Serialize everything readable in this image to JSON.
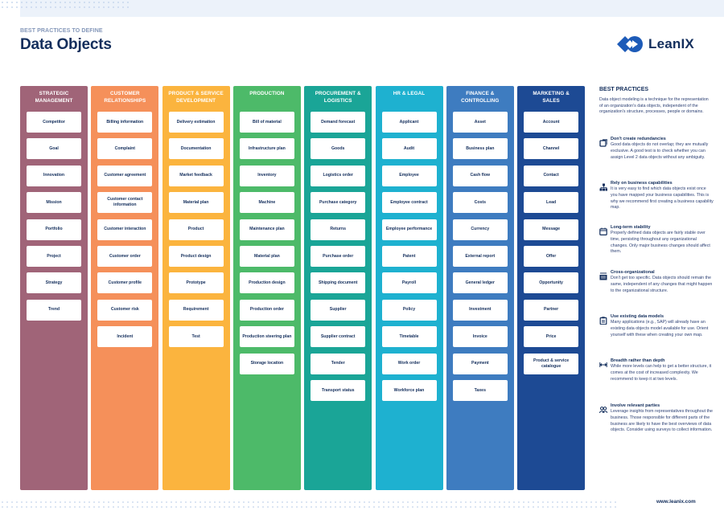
{
  "header": {
    "eyebrow": "BEST PRACTICES TO DEFINE",
    "title": "Data Objects",
    "logo_text": "LeanIX"
  },
  "colors": {
    "navy": "#132e5c",
    "strategic": "#a06478",
    "customer": "#f5905a",
    "product": "#fbb43e",
    "production": "#4dba69",
    "procurement": "#1aa597",
    "hr": "#1eb1d0",
    "finance": "#3e7cc0",
    "marketing": "#1d4a94"
  },
  "columns": [
    {
      "title_lines": [
        "STRATEGIC",
        "MANAGEMENT"
      ],
      "color": "#a06478",
      "items": [
        "Competitor",
        "Goal",
        "Innovation",
        "Mission",
        "Portfolio",
        "Project",
        "Strategy",
        "Trend"
      ]
    },
    {
      "title_lines": [
        "CUSTOMER",
        "RELATIONSHIPS"
      ],
      "color": "#f5905a",
      "items": [
        "Billing information",
        "Complaint",
        "Customer agreement",
        "Customer contact information",
        "Customer interaction",
        "Customer order",
        "Customer profile",
        "Customer risk",
        "Incident"
      ]
    },
    {
      "title_lines": [
        "PRODUCT & SERVICE",
        "DEVELOPMENT"
      ],
      "color": "#fbb43e",
      "items": [
        "Delivery estimation",
        "Documentation",
        "Market feedback",
        "Material plan",
        "Product",
        "Product design",
        "Prototype",
        "Requirement",
        "Test"
      ]
    },
    {
      "title_lines": [
        "PRODUCTION"
      ],
      "color": "#4dba69",
      "items": [
        "Bill of material",
        "Infrastructure plan",
        "Inventory",
        "Machine",
        "Maintenance plan",
        "Material plan",
        "Production design",
        "Production order",
        "Production steering plan",
        "Storage location"
      ]
    },
    {
      "title_lines": [
        "PROCUREMENT &",
        "LOGISTICS"
      ],
      "color": "#1aa597",
      "items": [
        "Demand forecast",
        "Goods",
        "Logistics order",
        "Purchase category",
        "Returns",
        "Purchase order",
        "Shipping document",
        "Supplier",
        "Supplier contract",
        "Tender",
        "Transport status"
      ]
    },
    {
      "title_lines": [
        "HR & LEGAL"
      ],
      "color": "#1eb1d0",
      "items": [
        "Applicant",
        "Audit",
        "Employee",
        "Employee contract",
        "Employee performance",
        "Patent",
        "Payroll",
        "Policy",
        "Timetable",
        "Work order",
        "Workforce plan"
      ]
    },
    {
      "title_lines": [
        "FINANCE &",
        "CONTROLLING"
      ],
      "color": "#3e7cc0",
      "items": [
        "Asset",
        "Business plan",
        "Cash flow",
        "Costs",
        "Currency",
        "External report",
        "General ledger",
        "Investment",
        "Invoice",
        "Payment",
        "Taxes"
      ]
    },
    {
      "title_lines": [
        "MARKETING &",
        "SALES"
      ],
      "color": "#1d4a94",
      "items": [
        "Account",
        "Channel",
        "Contact",
        "Lead",
        "Message",
        "Offer",
        "Opportunity",
        "Partner",
        "Price",
        "Product & service catalogue"
      ]
    }
  ],
  "best_practices": {
    "title": "BEST PRACTICES",
    "intro": "Data object modeling is a technique for the representation of an organization's data objects, independent of the organization's structure, processes, people or domains.",
    "items": [
      {
        "icon": "puzzle-icon",
        "title": "Don't create redundancies",
        "text": "Good data objects do not overlap; they are mutually exclusive. A good test is to check whether you can assign Level 2 data objects without any ambiguity."
      },
      {
        "icon": "hierarchy-icon",
        "title": "Rely on business capabilities",
        "text": "It is very easy to find which data objects exist once you have mapped your business capabilities. This is why we recommend first creating a business capability map."
      },
      {
        "icon": "calendar-icon",
        "title": "Long-term stability",
        "text": "Properly defined data objects are fairly stable over time, persisting throughout any organizational changes. Only major business changes should affect them."
      },
      {
        "icon": "building-icon",
        "title": "Cross-organizational",
        "text": "Don't get too specific. Data objects should remain the same, independent of any changes that might happen to the organizational structure."
      },
      {
        "icon": "clipboard-icon",
        "title": "Use existing data models",
        "text": "Many applications (e.g., SAP) will already have an existing data objects model available for use. Orient yourself with these when creating your own map."
      },
      {
        "icon": "width-arrows-icon",
        "title": "Breadth rather than depth",
        "text": "While more levels can help to get a better structure, it comes at the cost of increased complexity.  We recommend to keep it at two levels."
      },
      {
        "icon": "people-icon",
        "title": "Involve relevant parties",
        "text": "Leverage insights from representatives throughout the business. Those responsible for different parts of the business are likely to have the best overviews of data objects. Consider using surveys to collect information."
      }
    ]
  },
  "footer": {
    "url": "www.leanix.com"
  }
}
